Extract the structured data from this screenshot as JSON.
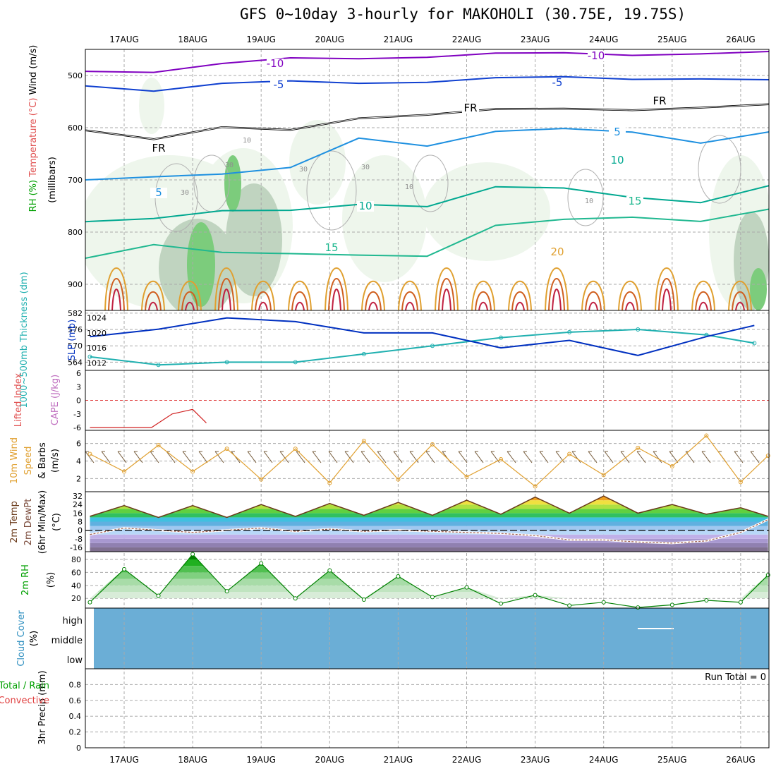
{
  "title": "GFS 0~10day 3-hourly for MAKOHOLI (30.75E, 19.75S)",
  "dates": [
    "17AUG",
    "18AUG",
    "19AUG",
    "20AUG",
    "21AUG",
    "22AUG",
    "23AUG",
    "24AUG",
    "25AUG",
    "26AUG"
  ],
  "chart_data": [
    {
      "type": "contour",
      "panel": "upper-air",
      "ylabel_parts": [
        "Wind (m/s)",
        "Temperature (°C)",
        "RH (%)",
        "(millibars)"
      ],
      "yticks": [
        500,
        600,
        700,
        800,
        900
      ],
      "ylim": [
        950,
        450
      ],
      "temperature_labels": [
        "-10",
        "-5",
        "FR",
        "5",
        "10",
        "15",
        "20"
      ],
      "rh_labels": [
        "30",
        "10"
      ],
      "isotherms": [
        {
          "label": "-10",
          "color": "#8000c0",
          "p": [
            492,
            490,
            478,
            470,
            466,
            462,
            460,
            459,
            458,
            457,
            458
          ]
        },
        {
          "label": "-5",
          "color": "#1040d0",
          "p": [
            520,
            526,
            516,
            514,
            513,
            510,
            507,
            505,
            504,
            505,
            512
          ]
        },
        {
          "label": "FR",
          "color": "#000000",
          "p": [
            605,
            618,
            600,
            608,
            580,
            572,
            567,
            566,
            563,
            560,
            559
          ]
        },
        {
          "label": "5",
          "color": "#1e90e0",
          "p": [
            700,
            690,
            690,
            680,
            618,
            632,
            610,
            604,
            605,
            628,
            612
          ]
        },
        {
          "label": "10",
          "color": "#00a890",
          "p": [
            780,
            770,
            760,
            762,
            745,
            748,
            716,
            718,
            730,
            742,
            715
          ]
        },
        {
          "label": "15",
          "color": "#20b890",
          "p": [
            850,
            820,
            840,
            845,
            842,
            843,
            790,
            778,
            768,
            778,
            760
          ]
        }
      ]
    },
    {
      "type": "line",
      "panel": "thickness-slp",
      "series": [
        {
          "name": "1000~500mb Thickness (dm)",
          "axis": "left",
          "color": "#20b0b0",
          "x": [
            0,
            1,
            2,
            3,
            4,
            5,
            6,
            7,
            8,
            9,
            9.7
          ],
          "values": [
            566,
            563,
            564,
            564,
            567,
            570,
            573,
            575,
            576,
            574,
            571
          ]
        },
        {
          "name": "SLP (mb)",
          "axis": "right",
          "color": "#0030c0",
          "x": [
            0,
            1,
            2,
            3,
            4,
            5,
            6,
            7,
            8,
            9,
            9.7
          ],
          "values": [
            1019,
            1021,
            1024,
            1023,
            1020,
            1020,
            1016,
            1018,
            1014,
            1019,
            1022
          ]
        }
      ],
      "yticks_left": [
        564,
        570,
        576,
        582
      ],
      "yticks_right": [
        1012,
        1016,
        1020,
        1024
      ]
    },
    {
      "type": "line",
      "panel": "cape-li",
      "ylabel_parts": [
        "Lifted Index",
        "CAPE (J/kg)"
      ],
      "yticks": [
        "6",
        "3",
        "0",
        "-3",
        "-6"
      ],
      "series": [
        {
          "name": "Lifted Index",
          "color": "#d02020",
          "x": [
            0,
            0.4,
            0.9,
            1.2,
            1.5,
            1.7
          ],
          "values": [
            -6,
            -6,
            -6,
            -3,
            -2,
            -5
          ]
        }
      ]
    },
    {
      "type": "line",
      "panel": "wind10m",
      "ylabel_parts": [
        "10m Wind",
        "Speed",
        "& Barbs",
        "(m/s)"
      ],
      "yticks": [
        2,
        4,
        6
      ],
      "series": [
        {
          "name": "10m Wind Speed",
          "color": "#e0a030",
          "x": [
            0,
            0.5,
            1,
            1.5,
            2,
            2.5,
            3,
            3.5,
            4,
            4.5,
            5,
            5.5,
            6,
            6.5,
            7,
            7.5,
            8,
            8.5,
            9,
            9.5,
            9.9
          ],
          "values": [
            4.8,
            2.8,
            5.8,
            2.8,
            5.4,
            1.9,
            5.4,
            1.5,
            6.3,
            1.9,
            5.9,
            2.2,
            4.2,
            1.1,
            4.8,
            2.4,
            5.5,
            3.4,
            6.9,
            1.6,
            4.6
          ]
        }
      ]
    },
    {
      "type": "area",
      "panel": "temp2m",
      "ylabel_parts": [
        "2m Temp",
        "2m DewPt",
        "(6hr Min/Max)",
        "(°C)"
      ],
      "yticks": [
        32,
        24,
        16,
        8,
        0,
        -8,
        -16
      ],
      "series": [
        {
          "name": "2m Temp",
          "color": "#6a3a1a",
          "x": [
            0,
            0.5,
            1,
            1.5,
            2,
            2.5,
            3,
            3.5,
            4,
            4.5,
            5,
            5.5,
            6,
            6.5,
            7,
            7.5,
            8,
            8.5,
            9,
            9.5,
            9.9
          ],
          "values": [
            13,
            23,
            12,
            23,
            12,
            24,
            13,
            25,
            14,
            26,
            14,
            28,
            15,
            31,
            16,
            32,
            16,
            24,
            15,
            21,
            13
          ]
        },
        {
          "name": "2m DewPt",
          "color": "#a06050",
          "x": [
            0,
            0.5,
            1,
            1.5,
            2,
            2.5,
            3,
            3.5,
            4,
            4.5,
            5,
            5.5,
            6,
            6.5,
            7,
            7.5,
            8,
            8.5,
            9,
            9.5,
            9.9
          ],
          "values": [
            -4,
            2,
            0,
            -2,
            0,
            2,
            -1,
            1,
            -1,
            0,
            -1,
            -2,
            -3,
            -5,
            -9,
            -9,
            -11,
            -12,
            -10,
            -2,
            10
          ]
        }
      ]
    },
    {
      "type": "area",
      "panel": "rh2m",
      "ylabel_parts": [
        "2m RH",
        "(%)"
      ],
      "yticks": [
        20,
        40,
        60,
        80
      ],
      "series": [
        {
          "name": "2m RH",
          "color": "#008000",
          "x": [
            0,
            0.5,
            1,
            1.5,
            2,
            2.5,
            3,
            3.5,
            4,
            4.5,
            5,
            5.5,
            6,
            6.5,
            7,
            7.5,
            8,
            8.5,
            9,
            9.5,
            9.9
          ],
          "values": [
            14,
            65,
            24,
            88,
            31,
            74,
            20,
            63,
            18,
            54,
            22,
            37,
            12,
            25,
            9,
            14,
            6,
            10,
            17,
            14,
            56
          ]
        }
      ]
    },
    {
      "type": "heatmap",
      "panel": "cloud",
      "ylabel_parts": [
        "Cloud Cover",
        "(%)"
      ],
      "levels": [
        "high",
        "middle",
        "low"
      ],
      "fill": "#6baed6"
    },
    {
      "type": "bar",
      "panel": "precip",
      "ylabel_parts": [
        "Total / Rain",
        "Convective",
        "3hr Precip (mm)"
      ],
      "yticks": [
        "0",
        "0.2",
        "0.4",
        "0.6",
        "0.8"
      ],
      "ylim": [
        0,
        1
      ],
      "run_total": "Run Total = 0"
    }
  ]
}
